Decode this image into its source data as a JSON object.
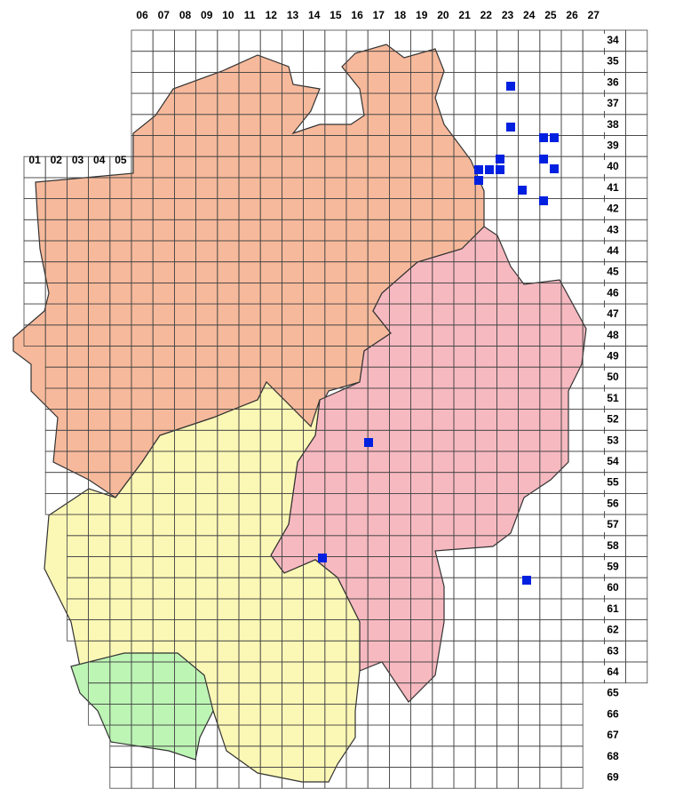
{
  "column_labels": [
    "06",
    "07",
    "08",
    "09",
    "10",
    "11",
    "12",
    "13",
    "14",
    "15",
    "16",
    "17",
    "18",
    "19",
    "20",
    "21",
    "22",
    "23",
    "24",
    "25",
    "26",
    "27"
  ],
  "left_column_labels": [
    "01",
    "02",
    "03",
    "04",
    "05"
  ],
  "row_labels": [
    "34",
    "35",
    "36",
    "37",
    "38",
    "39",
    "40",
    "41",
    "42",
    "43",
    "44",
    "45",
    "46",
    "47",
    "48",
    "49",
    "50",
    "51",
    "52",
    "53",
    "54",
    "55",
    "56",
    "57",
    "58",
    "59",
    "60",
    "61",
    "62",
    "63",
    "64",
    "65",
    "66",
    "67",
    "68",
    "69"
  ]
}
